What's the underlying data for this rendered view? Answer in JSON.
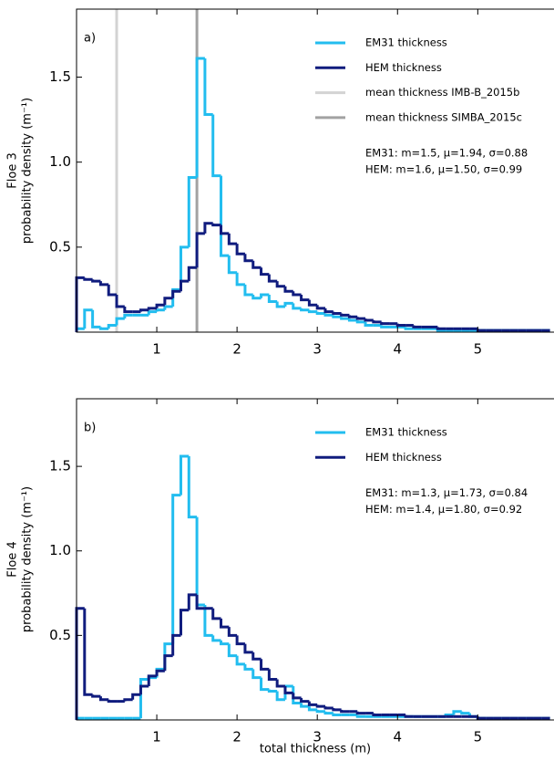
{
  "chart_data": [
    {
      "type": "histogram",
      "panel_label": "a)",
      "ylabel": [
        "Floe 3",
        "probability density (m⁻¹)"
      ],
      "bins": [
        0,
        0.1,
        0.2,
        0.3,
        0.4,
        0.5,
        0.6,
        0.7,
        0.8,
        0.9,
        1.0,
        1.1,
        1.2,
        1.3,
        1.4,
        1.5,
        1.6,
        1.7,
        1.8,
        1.9,
        2.0,
        2.1,
        2.2,
        2.3,
        2.4,
        2.5,
        2.6,
        2.7,
        2.8,
        2.9,
        3.0,
        3.1,
        3.2,
        3.3,
        3.4,
        3.5,
        3.6,
        3.7,
        3.8,
        3.9,
        4.0,
        4.1,
        4.2,
        4.3,
        4.4,
        4.5,
        4.6,
        4.7,
        4.8,
        4.9,
        5.0,
        5.1,
        5.2,
        5.3,
        5.4,
        5.5,
        5.6,
        5.7,
        5.8,
        5.9
      ],
      "series": [
        {
          "name": "EM31 thickness",
          "color": "#22bdef",
          "values": [
            0.02,
            0.13,
            0.03,
            0.02,
            0.04,
            0.08,
            0.1,
            0.1,
            0.1,
            0.12,
            0.13,
            0.15,
            0.25,
            0.5,
            0.91,
            1.61,
            1.28,
            0.92,
            0.45,
            0.35,
            0.28,
            0.22,
            0.2,
            0.22,
            0.18,
            0.15,
            0.17,
            0.14,
            0.13,
            0.12,
            0.11,
            0.1,
            0.09,
            0.08,
            0.07,
            0.06,
            0.04,
            0.04,
            0.03,
            0.03,
            0.03,
            0.02,
            0.02,
            0.02,
            0.02,
            0.01,
            0.01,
            0.01,
            0.01,
            0.01,
            0.01,
            0.01,
            0.01,
            0.01,
            0.01,
            0.01,
            0.01,
            0.01,
            0.01
          ]
        },
        {
          "name": "HEM thickness",
          "color": "#101c7e",
          "values": [
            0.32,
            0.31,
            0.3,
            0.28,
            0.22,
            0.15,
            0.12,
            0.12,
            0.13,
            0.14,
            0.16,
            0.2,
            0.24,
            0.3,
            0.38,
            0.58,
            0.64,
            0.63,
            0.58,
            0.52,
            0.46,
            0.42,
            0.38,
            0.34,
            0.3,
            0.27,
            0.24,
            0.22,
            0.19,
            0.16,
            0.14,
            0.12,
            0.11,
            0.1,
            0.09,
            0.08,
            0.07,
            0.06,
            0.05,
            0.05,
            0.04,
            0.04,
            0.03,
            0.03,
            0.03,
            0.02,
            0.02,
            0.02,
            0.02,
            0.02,
            0.01,
            0.01,
            0.01,
            0.01,
            0.01,
            0.01,
            0.01,
            0.01,
            0.01
          ]
        }
      ],
      "vlines": [
        {
          "name": "mean thickness IMB-B_2015b",
          "color": "#d3d3d3",
          "value": 0.5
        },
        {
          "name": "mean thickness SIMBA_2015c",
          "color": "#a2a2a2",
          "value": 1.5
        }
      ],
      "annotations": [
        "EM31: m=1.5, μ=1.94, σ=0.88",
        "HEM: m=1.6, μ=1.50, σ=0.99"
      ],
      "legend": "upper right",
      "xlim": [
        0,
        5.95
      ],
      "xticks": [
        1,
        2,
        3,
        4,
        5
      ],
      "ylim": [
        0,
        1.9
      ],
      "yticks": [
        0.5,
        {
          "value": 1,
          "label": "1.0"
        },
        1.5
      ]
    },
    {
      "type": "histogram",
      "panel_label": "b)",
      "ylabel": [
        "Floe 4",
        "probability density (m⁻¹)"
      ],
      "xlabel": "total thickness (m)",
      "bins": [
        0,
        0.1,
        0.2,
        0.3,
        0.4,
        0.5,
        0.6,
        0.7,
        0.8,
        0.9,
        1.0,
        1.1,
        1.2,
        1.3,
        1.4,
        1.5,
        1.6,
        1.7,
        1.8,
        1.9,
        2.0,
        2.1,
        2.2,
        2.3,
        2.4,
        2.5,
        2.6,
        2.7,
        2.8,
        2.9,
        3.0,
        3.1,
        3.2,
        3.3,
        3.4,
        3.5,
        3.6,
        3.7,
        3.8,
        3.9,
        4.0,
        4.1,
        4.2,
        4.3,
        4.4,
        4.5,
        4.6,
        4.7,
        4.8,
        4.9,
        5.0,
        5.1,
        5.2,
        5.3,
        5.4,
        5.5,
        5.6,
        5.7,
        5.8,
        5.9
      ],
      "series": [
        {
          "name": "EM31 thickness",
          "color": "#22bdef",
          "values": [
            0.01,
            0.01,
            0.01,
            0.01,
            0.01,
            0.01,
            0.01,
            0.01,
            0.24,
            0.25,
            0.3,
            0.45,
            1.33,
            1.56,
            1.2,
            0.68,
            0.5,
            0.47,
            0.45,
            0.38,
            0.33,
            0.3,
            0.25,
            0.18,
            0.17,
            0.12,
            0.2,
            0.1,
            0.08,
            0.06,
            0.05,
            0.04,
            0.03,
            0.03,
            0.03,
            0.02,
            0.02,
            0.02,
            0.02,
            0.02,
            0.02,
            0.02,
            0.02,
            0.02,
            0.02,
            0.02,
            0.03,
            0.05,
            0.04,
            0.02,
            0.01,
            0.01,
            0.01,
            0.01,
            0.01,
            0.01,
            0.01,
            0.01,
            0.01
          ]
        },
        {
          "name": "HEM thickness",
          "color": "#101c7e",
          "values": [
            0.66,
            0.15,
            0.14,
            0.12,
            0.11,
            0.11,
            0.12,
            0.15,
            0.2,
            0.26,
            0.29,
            0.38,
            0.5,
            0.65,
            0.74,
            0.66,
            0.66,
            0.6,
            0.55,
            0.5,
            0.45,
            0.4,
            0.36,
            0.3,
            0.24,
            0.2,
            0.16,
            0.13,
            0.11,
            0.09,
            0.08,
            0.07,
            0.06,
            0.05,
            0.05,
            0.04,
            0.04,
            0.03,
            0.03,
            0.03,
            0.03,
            0.02,
            0.02,
            0.02,
            0.02,
            0.02,
            0.02,
            0.02,
            0.02,
            0.02,
            0.01,
            0.01,
            0.01,
            0.01,
            0.01,
            0.01,
            0.01,
            0.01,
            0.01
          ]
        }
      ],
      "annotations": [
        "EM31: m=1.3, μ=1.73, σ=0.84",
        "HEM: m=1.4, μ=1.80, σ=0.92"
      ],
      "legend": "upper right",
      "xlim": [
        0,
        5.95
      ],
      "xticks": [
        1,
        2,
        3,
        4,
        5
      ],
      "ylim": [
        0,
        1.9
      ],
      "yticks": [
        0.5,
        {
          "value": 1,
          "label": "1.0"
        },
        1.5
      ]
    }
  ]
}
